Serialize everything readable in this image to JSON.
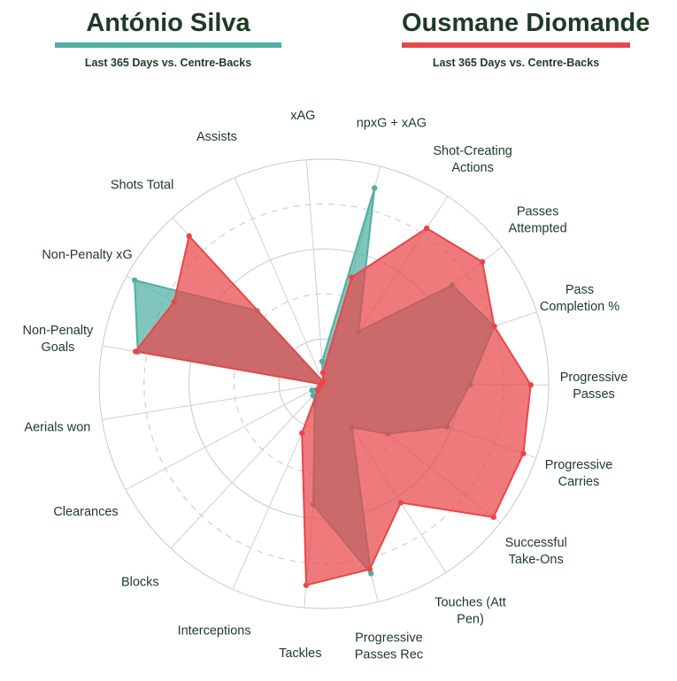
{
  "players": [
    {
      "name": "António Silva",
      "subtitle": "Last 365 Days vs. Centre-Backs",
      "color": "#4fb0a3"
    },
    {
      "name": "Ousmane Diomande",
      "subtitle": "Last 365 Days vs. Centre-Backs",
      "color": "#e8474a"
    }
  ],
  "chart_data": {
    "type": "radar",
    "scale": "percentile",
    "rmax": 100,
    "rings": [
      20,
      40,
      60,
      80,
      100
    ],
    "axes": [
      {
        "label": [
          "npxG + xAG"
        ]
      },
      {
        "label": [
          "Shot-Creating",
          "Actions"
        ]
      },
      {
        "label": [
          "Passes",
          "Attempted"
        ]
      },
      {
        "label": [
          "Pass",
          "Completion %"
        ]
      },
      {
        "label": [
          "Progressive",
          "Passes"
        ]
      },
      {
        "label": [
          "Progressive",
          "Carries"
        ]
      },
      {
        "label": [
          "Successful",
          "Take-Ons"
        ]
      },
      {
        "label": [
          "Touches (Att",
          "Pen)"
        ]
      },
      {
        "label": [
          "Progressive",
          "Passes Rec"
        ]
      },
      {
        "label": [
          "Tackles"
        ]
      },
      {
        "label": [
          "Interceptions"
        ]
      },
      {
        "label": [
          "Blocks"
        ]
      },
      {
        "label": [
          "Clearances"
        ]
      },
      {
        "label": [
          "Aerials won"
        ]
      },
      {
        "label": [
          "Non-Penalty",
          "Goals"
        ]
      },
      {
        "label": [
          "Non-Penalty xG"
        ]
      },
      {
        "label": [
          "Shots Total"
        ]
      },
      {
        "label": [
          "Assists"
        ]
      },
      {
        "label": [
          "xAG"
        ]
      }
    ],
    "series": [
      {
        "name": "António Silva",
        "color": "#4fb0a3",
        "values": [
          90,
          28,
          72,
          80,
          65,
          58,
          36,
          23,
          87,
          54,
          10,
          7,
          6,
          1,
          84,
          96,
          44,
          1,
          10
        ]
      },
      {
        "name": "Ousmane Diomande",
        "color": "#e8474a",
        "values": [
          49,
          83,
          89,
          80,
          92,
          94,
          96,
          63,
          85,
          90,
          24,
          4,
          2,
          1,
          85,
          76,
          89,
          1,
          5
        ]
      }
    ]
  }
}
